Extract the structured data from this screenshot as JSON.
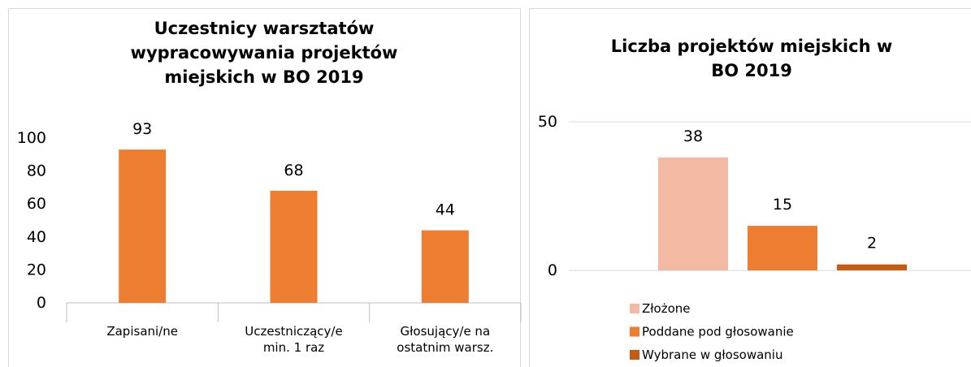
{
  "chart_data": [
    {
      "type": "bar",
      "title": "Uczestnicy warsztatów\nwypracowywania projektów\nmiejskich w BO 2019",
      "categories": [
        "Zapisani/ne",
        "Uczestniczący/e\nmin. 1 raz",
        "Głosujący/e na\nostatnim warsz."
      ],
      "values": [
        93,
        68,
        44
      ],
      "color": "#ed7d31",
      "ylim": [
        0,
        100
      ],
      "yticks": [
        0,
        20,
        40,
        60,
        80,
        100
      ],
      "grid": false
    },
    {
      "type": "grouped-bar",
      "title": "Liczba projektów miejskich w\nBO 2019",
      "series": [
        {
          "name": "Złożone",
          "color": "#f4b9a2",
          "values": [
            38
          ]
        },
        {
          "name": "Poddane pod głosowanie",
          "color": "#ed7d31",
          "values": [
            15
          ]
        },
        {
          "name": "Wybrane w głosowaniu",
          "color": "#c55a11",
          "values": [
            2
          ]
        }
      ],
      "ylim": [
        0,
        50
      ],
      "yticks": [
        0,
        50
      ],
      "grid": true,
      "legend": "bottom"
    }
  ]
}
